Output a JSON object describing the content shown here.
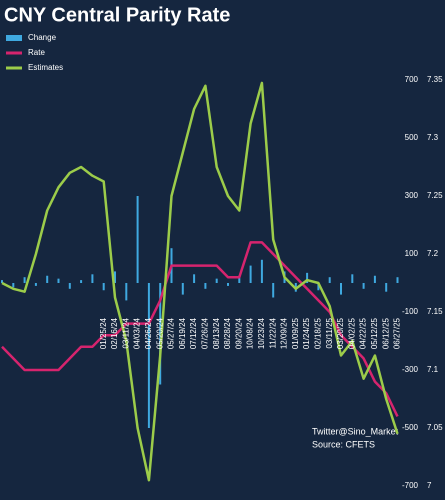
{
  "chart_data": {
    "type": "bar_line",
    "title": "CNY Central Parity Rate",
    "annotations": [
      "Twitter@Sino_Market",
      "Source: CFETS"
    ],
    "categories": [
      null,
      null,
      null,
      null,
      null,
      null,
      null,
      null,
      null,
      "01/25/24",
      "02/16/24",
      "03/11/24",
      "04/03/24",
      "04/26/24",
      "05/20/24",
      "05/27/24",
      "06/19/24",
      "07/12/24",
      "07/26/24",
      "08/13/24",
      "08/28/24",
      "09/20/24",
      "10/08/24",
      "10/23/24",
      "11/22/24",
      "12/09/24",
      "01/09/25",
      "01/24/25",
      "02/18/25",
      "03/11/25",
      "03/20/25",
      "04/02/25",
      "04/22/25",
      "05/12/25",
      "06/12/25",
      "06/27/25"
    ],
    "series": [
      {
        "name": "Change",
        "type": "bar",
        "color": "#3fa9e0",
        "values": [
          10,
          -15,
          20,
          -10,
          25,
          15,
          -20,
          10,
          30,
          -25,
          40,
          -60,
          300,
          -500,
          -350,
          120,
          -40,
          30,
          -20,
          15,
          -10,
          25,
          60,
          80,
          -50,
          40,
          -30,
          35,
          -25,
          20,
          -40,
          30,
          -20,
          25,
          -30,
          20
        ]
      },
      {
        "name": "Rate",
        "type": "line",
        "axis": "y2",
        "color": "#d6246e",
        "values": [
          7.12,
          7.11,
          7.1,
          7.1,
          7.1,
          7.1,
          7.11,
          7.12,
          7.12,
          7.13,
          7.13,
          7.14,
          7.14,
          7.14,
          7.16,
          7.19,
          7.19,
          7.19,
          7.19,
          7.19,
          7.18,
          7.18,
          7.21,
          7.21,
          7.2,
          7.19,
          7.18,
          7.17,
          7.16,
          7.15,
          7.13,
          7.12,
          7.11,
          7.09,
          7.08,
          7.06
        ]
      },
      {
        "name": "Estimates",
        "type": "line",
        "color": "#9ccc4a",
        "values": [
          0,
          -20,
          -30,
          100,
          250,
          330,
          380,
          400,
          370,
          350,
          -50,
          -200,
          -500,
          -680,
          -250,
          300,
          450,
          600,
          680,
          400,
          300,
          250,
          550,
          690,
          150,
          20,
          -20,
          10,
          0,
          -80,
          -250,
          -200,
          -330,
          -250,
          -400,
          -520
        ]
      }
    ],
    "ylim": [
      -700,
      700
    ],
    "yticks": [
      700,
      500,
      300,
      100,
      -100,
      -300,
      -500,
      -700
    ],
    "y2lim": [
      7,
      7.35
    ],
    "y2ticks": [
      7.35,
      7.3,
      7.25,
      7.2,
      7.15,
      7.1,
      7.05,
      7
    ]
  }
}
